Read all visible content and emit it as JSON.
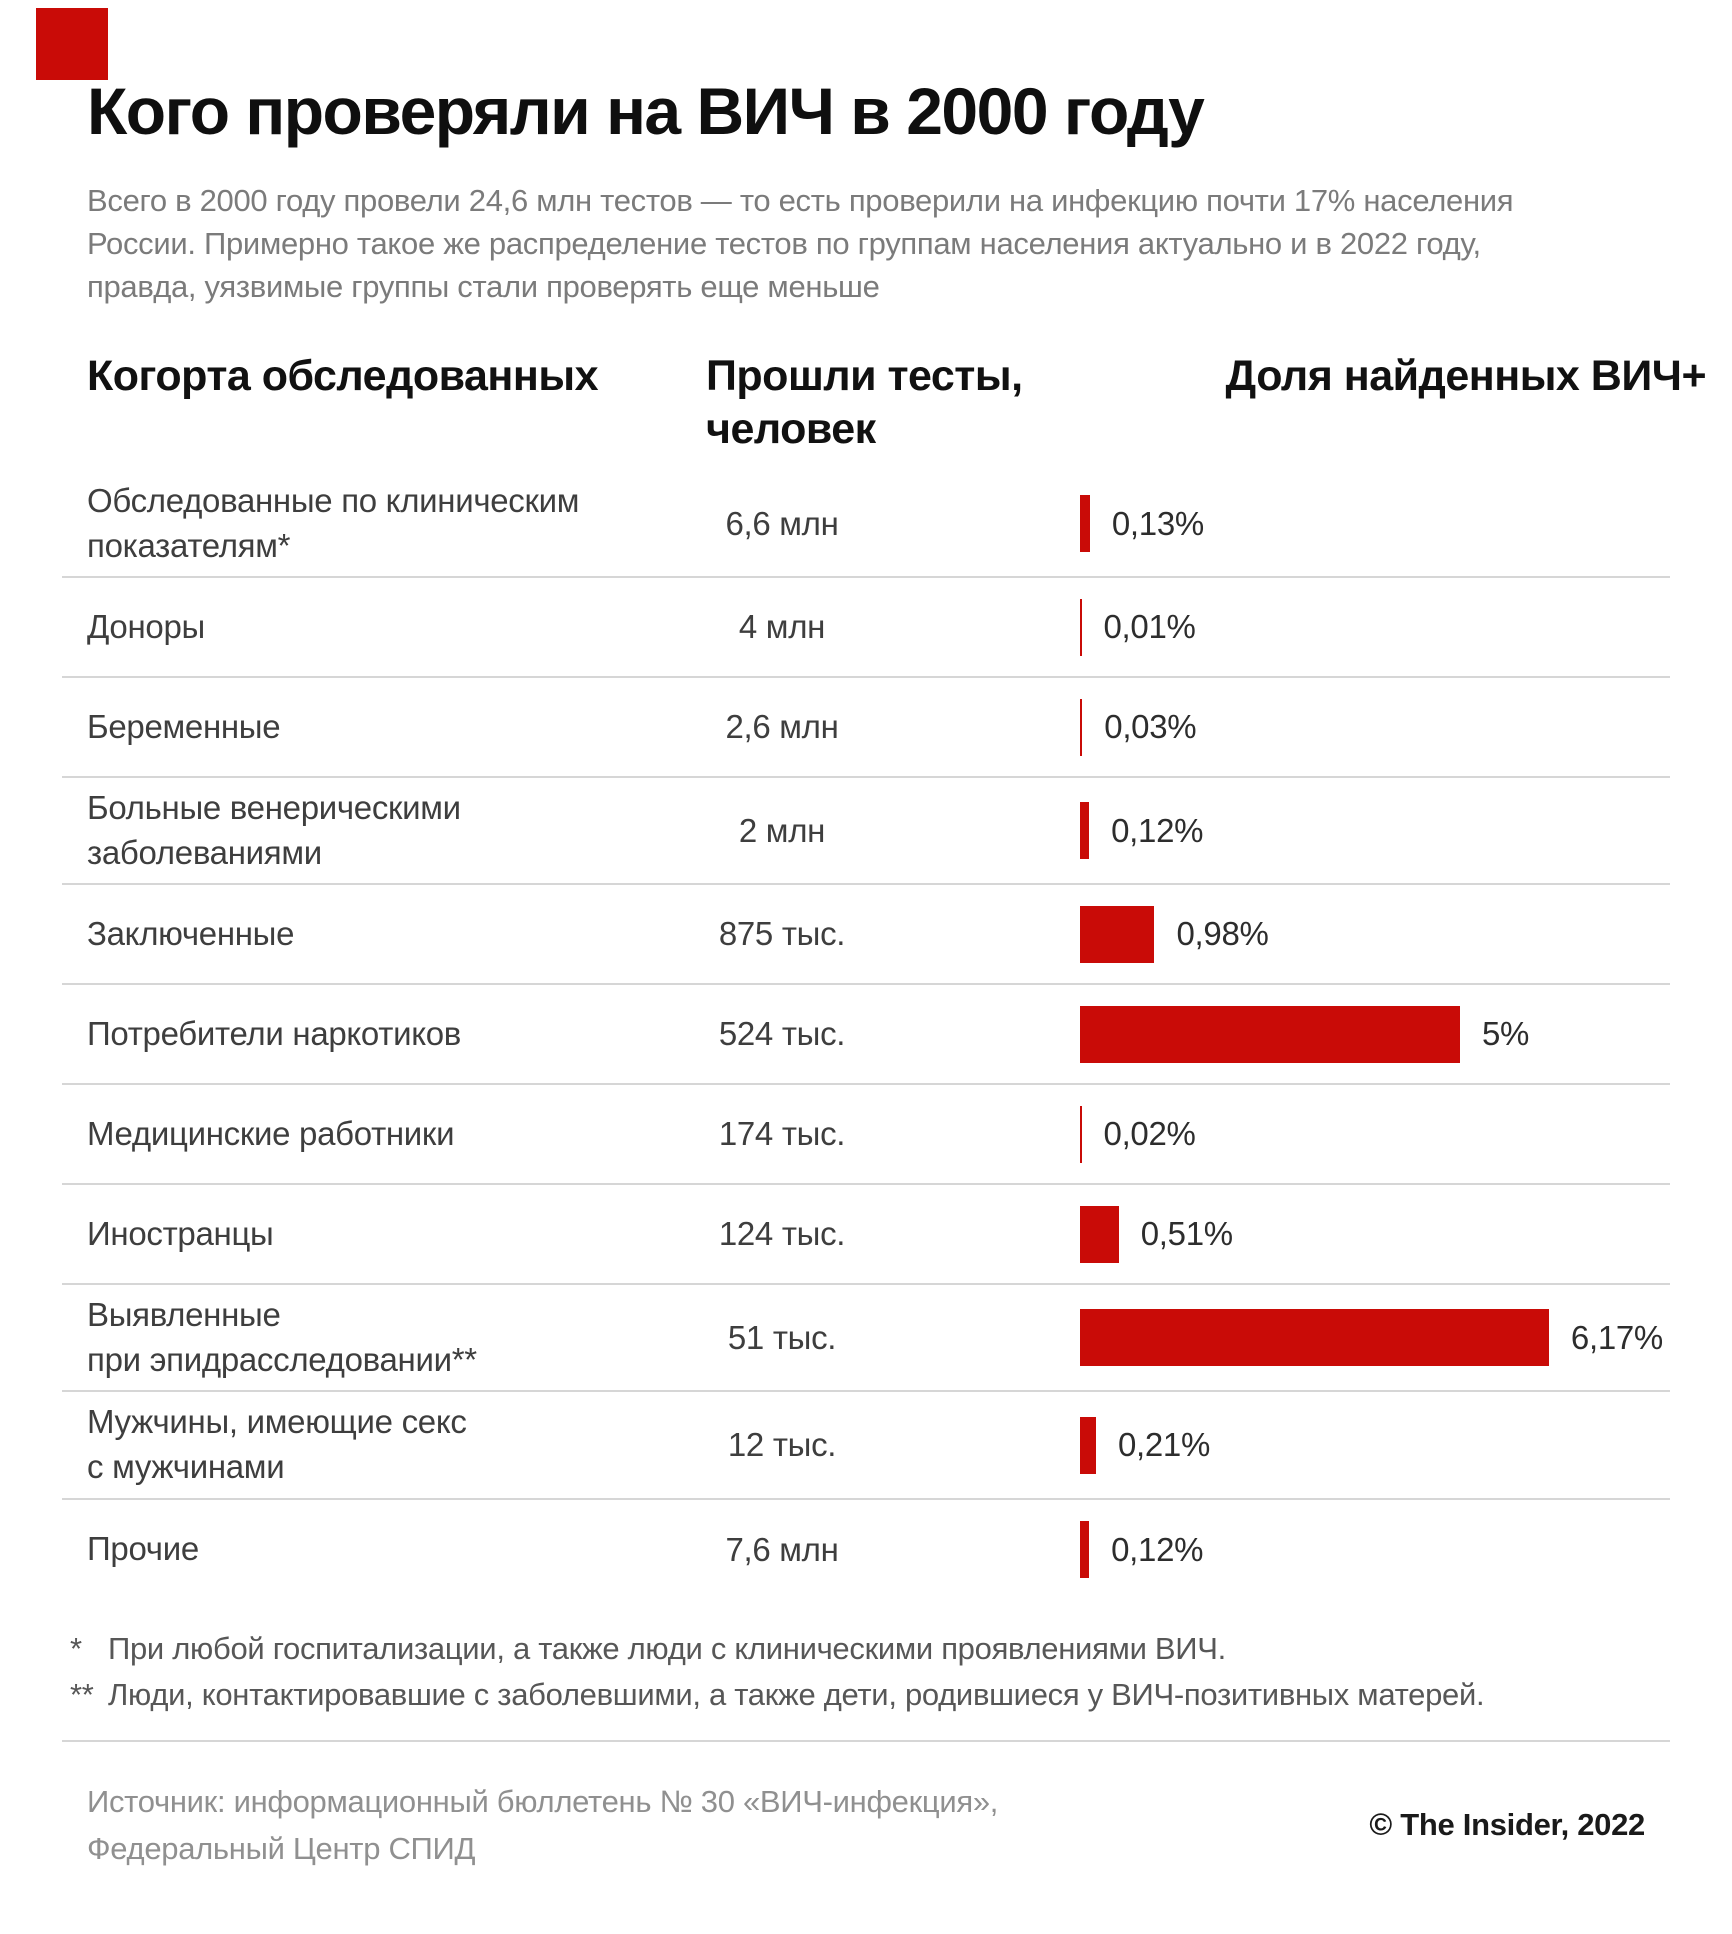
{
  "logo": {
    "color": "#c90b07"
  },
  "title": "Кого проверяли на ВИЧ в 2000 году",
  "subtitle": "Всего в 2000 году провели 24,6 млн тестов — то есть проверили на инфекцию почти 17% населения\nРоссии. Примерно такое же распределение тестов по группам населения актуально и в 2022 году,\nправда, уязвимые группы стали проверять еще меньше",
  "table": {
    "headers": {
      "cohort": "Когорта обследованных",
      "tests": "Прошли тесты,\nчеловек",
      "share": "Доля найденных ВИЧ+"
    },
    "rows": [
      {
        "cohort": "Обследованные по клиническим\nпоказателям*",
        "tests": "6,6 млн",
        "percent": 0.13,
        "percent_label": "0,13%"
      },
      {
        "cohort": "Доноры",
        "tests": "4 млн",
        "percent": 0.01,
        "percent_label": "0,01%"
      },
      {
        "cohort": "Беременные",
        "tests": "2,6 млн",
        "percent": 0.03,
        "percent_label": "0,03%"
      },
      {
        "cohort": "Больные венерическими\nзаболеваниями",
        "tests": "2 млн",
        "percent": 0.12,
        "percent_label": "0,12%"
      },
      {
        "cohort": "Заключенные",
        "tests": "875 тыс.",
        "percent": 0.98,
        "percent_label": "0,98%"
      },
      {
        "cohort": "Потребители наркотиков",
        "tests": "524 тыс.",
        "percent": 5,
        "percent_label": "5%"
      },
      {
        "cohort": "Медицинские работники",
        "tests": "174 тыс.",
        "percent": 0.02,
        "percent_label": "0,02%"
      },
      {
        "cohort": "Иностранцы",
        "tests": "124 тыс.",
        "percent": 0.51,
        "percent_label": "0,51%"
      },
      {
        "cohort": "Выявленные\nпри эпидрасследовании**",
        "tests": "51 тыс.",
        "percent": 6.17,
        "percent_label": "6,17%"
      },
      {
        "cohort": "Мужчины, имеющие секс\nс мужчинами",
        "tests": "12 тыс.",
        "percent": 0.21,
        "percent_label": "0,21%"
      },
      {
        "cohort": "Прочие",
        "tests": "7,6 млн",
        "percent": 0.12,
        "percent_label": "0,12%"
      }
    ]
  },
  "footnotes": [
    {
      "marker": "*",
      "text": "При любой госпитализации, а также люди с клиническими проявлениями ВИЧ."
    },
    {
      "marker": "**",
      "text": "Люди, контактировавшие с заболевшими, а также дети, родившиеся у ВИЧ-позитивных матерей."
    }
  ],
  "footer": {
    "source": "Источник: информационный бюллетень № 30 «ВИЧ-инфекция»,\nФедеральный Центр СПИД",
    "credit": "© The Insider, 2022"
  },
  "colors": {
    "bar": "#c90b07",
    "divider": "#d6d6d6"
  },
  "chart_data": {
    "type": "bar",
    "orientation": "horizontal",
    "title": "Кого проверяли на ВИЧ в 2000 году",
    "subtitle": "Всего в 2000 году провели 24,6 млн тестов — то есть проверили на инфекцию почти 17% населения России. Примерно такое же распределение тестов по группам населения актуально и в 2022 году, правда, уязвимые группы стали проверять еще меньше",
    "categories": [
      "Обследованные по клиническим показателям*",
      "Доноры",
      "Беременные",
      "Больные венерическими заболеваниями",
      "Заключенные",
      "Потребители наркотиков",
      "Медицинские работники",
      "Иностранцы",
      "Выявленные при эпидрасследовании**",
      "Мужчины, имеющие секс с мужчинами",
      "Прочие"
    ],
    "series": [
      {
        "name": "Прошли тесты, человек",
        "values_label": [
          "6,6 млн",
          "4 млн",
          "2,6 млн",
          "2 млн",
          "875 тыс.",
          "524 тыс.",
          "174 тыс.",
          "124 тыс.",
          "51 тыс.",
          "12 тыс.",
          "7,6 млн"
        ]
      },
      {
        "name": "Доля найденных ВИЧ+ (%)",
        "values": [
          0.13,
          0.01,
          0.03,
          0.12,
          0.98,
          5,
          0.02,
          0.51,
          6.17,
          0.21,
          0.12
        ]
      }
    ],
    "xlabel": "Доля найденных ВИЧ+",
    "ylabel": "Когорта обследованных",
    "xlim": [
      0,
      6.5
    ],
    "grid": false,
    "legend_position": "none",
    "bar_color": "#c90b07"
  }
}
